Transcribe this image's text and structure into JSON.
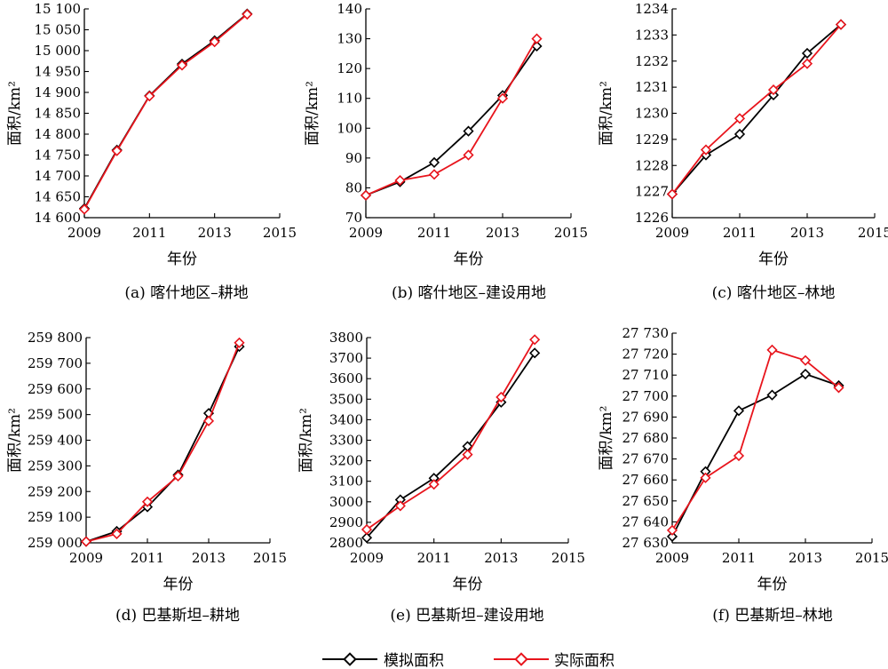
{
  "figure": {
    "legend": [
      {
        "label": "模拟面积",
        "color": "#000000"
      },
      {
        "label": "实际面积",
        "color": "#e8141c"
      }
    ]
  },
  "chart_data": [
    {
      "type": "line",
      "caption": "(a) 喀什地区–耕地",
      "xlabel": "年份",
      "ylabel": "面积/km²",
      "x": [
        2009,
        2010,
        2011,
        2012,
        2013,
        2014
      ],
      "xlim": [
        2009,
        2015
      ],
      "xticks": [
        "2009",
        "2011",
        "2013",
        "2015"
      ],
      "ylim": [
        14600,
        15100
      ],
      "yticks": [
        "14 600",
        "14 650",
        "14 700",
        "14 750",
        "14 800",
        "14 850",
        "14 900",
        "14 950",
        "15 000",
        "15 050",
        "15 100"
      ],
      "series": [
        {
          "name": "模拟面积",
          "color": "#000000",
          "values": [
            14622,
            14762,
            14892,
            14968,
            15024,
            15088
          ]
        },
        {
          "name": "实际面积",
          "color": "#e8141c",
          "values": [
            14620,
            14760,
            14891,
            14965,
            15021,
            15087
          ]
        }
      ]
    },
    {
      "type": "line",
      "caption": "(b) 喀什地区–建设用地",
      "xlabel": "年份",
      "ylabel": "面积/km²",
      "x": [
        2009,
        2010,
        2011,
        2012,
        2013,
        2014
      ],
      "xlim": [
        2009,
        2015
      ],
      "xticks": [
        "2009",
        "2011",
        "2013",
        "2015"
      ],
      "ylim": [
        70,
        140
      ],
      "yticks": [
        "70",
        "80",
        "90",
        "100",
        "110",
        "120",
        "130",
        "140"
      ],
      "series": [
        {
          "name": "模拟面积",
          "color": "#000000",
          "values": [
            77.5,
            82,
            88.5,
            99,
            111,
            127.5
          ]
        },
        {
          "name": "实际面积",
          "color": "#e8141c",
          "values": [
            77.5,
            82.5,
            84.5,
            91,
            110,
            130
          ]
        }
      ]
    },
    {
      "type": "line",
      "caption": "(c) 喀什地区–林地",
      "xlabel": "年份",
      "ylabel": "面积/km²",
      "x": [
        2009,
        2010,
        2011,
        2012,
        2013,
        2014
      ],
      "xlim": [
        2009,
        2015
      ],
      "xticks": [
        "2009",
        "2011",
        "2013",
        "2015"
      ],
      "ylim": [
        1226,
        1234
      ],
      "yticks": [
        "1226",
        "1227",
        "1228",
        "1229",
        "1230",
        "1231",
        "1232",
        "1233",
        "1234"
      ],
      "series": [
        {
          "name": "模拟面积",
          "color": "#000000",
          "values": [
            1226.9,
            1228.4,
            1229.2,
            1230.7,
            1232.3,
            1233.4
          ]
        },
        {
          "name": "实际面积",
          "color": "#e8141c",
          "values": [
            1226.9,
            1228.6,
            1229.8,
            1230.9,
            1231.9,
            1233.4
          ]
        }
      ]
    },
    {
      "type": "line",
      "caption": "(d) 巴基斯坦–耕地",
      "xlabel": "年份",
      "ylabel": "面积/km²",
      "x": [
        2009,
        2010,
        2011,
        2012,
        2013,
        2014
      ],
      "xlim": [
        2009,
        2015
      ],
      "xticks": [
        "2009",
        "2011",
        "2013",
        "2015"
      ],
      "ylim": [
        259000,
        259800
      ],
      "yticks": [
        "259 000",
        "259 100",
        "259 200",
        "259 300",
        "259 400",
        "259 500",
        "259 600",
        "259 700",
        "259 800"
      ],
      "series": [
        {
          "name": "模拟面积",
          "color": "#000000",
          "values": [
            259005,
            259045,
            259140,
            259265,
            259505,
            259765
          ]
        },
        {
          "name": "实际面积",
          "color": "#e8141c",
          "values": [
            259005,
            259035,
            259160,
            259260,
            259475,
            259780
          ]
        }
      ]
    },
    {
      "type": "line",
      "caption": "(e) 巴基斯坦–建设用地",
      "xlabel": "年份",
      "ylabel": "面积/km²",
      "x": [
        2009,
        2010,
        2011,
        2012,
        2013,
        2014
      ],
      "xlim": [
        2009,
        2015
      ],
      "xticks": [
        "2009",
        "2011",
        "2013",
        "2015"
      ],
      "ylim": [
        2800,
        3800
      ],
      "yticks": [
        "2800",
        "2900",
        "3000",
        "3100",
        "3200",
        "3300",
        "3400",
        "3500",
        "3600",
        "3700",
        "3800"
      ],
      "series": [
        {
          "name": "模拟面积",
          "color": "#000000",
          "values": [
            2825,
            3010,
            3115,
            3270,
            3485,
            3725
          ]
        },
        {
          "name": "实际面积",
          "color": "#e8141c",
          "values": [
            2865,
            2980,
            3085,
            3230,
            3510,
            3790
          ]
        }
      ]
    },
    {
      "type": "line",
      "caption": "(f) 巴基斯坦–林地",
      "xlabel": "年份",
      "ylabel": "面积/km²",
      "x": [
        2009,
        2010,
        2011,
        2012,
        2013,
        2014
      ],
      "xlim": [
        2009,
        2015
      ],
      "xticks": [
        "2009",
        "2011",
        "2013",
        "2015"
      ],
      "ylim": [
        27630,
        27730
      ],
      "yticks": [
        "27 630",
        "27 640",
        "27 650",
        "27 660",
        "27 670",
        "27 680",
        "27 690",
        "27 700",
        "27 710",
        "27 720",
        "27 730"
      ],
      "series": [
        {
          "name": "模拟面积",
          "color": "#000000",
          "values": [
            27633,
            27664,
            27693,
            27700.5,
            27710.5,
            27705
          ]
        },
        {
          "name": "实际面积",
          "color": "#e8141c",
          "values": [
            27636,
            27661,
            27671.5,
            27722,
            27717,
            27704
          ]
        }
      ]
    }
  ]
}
